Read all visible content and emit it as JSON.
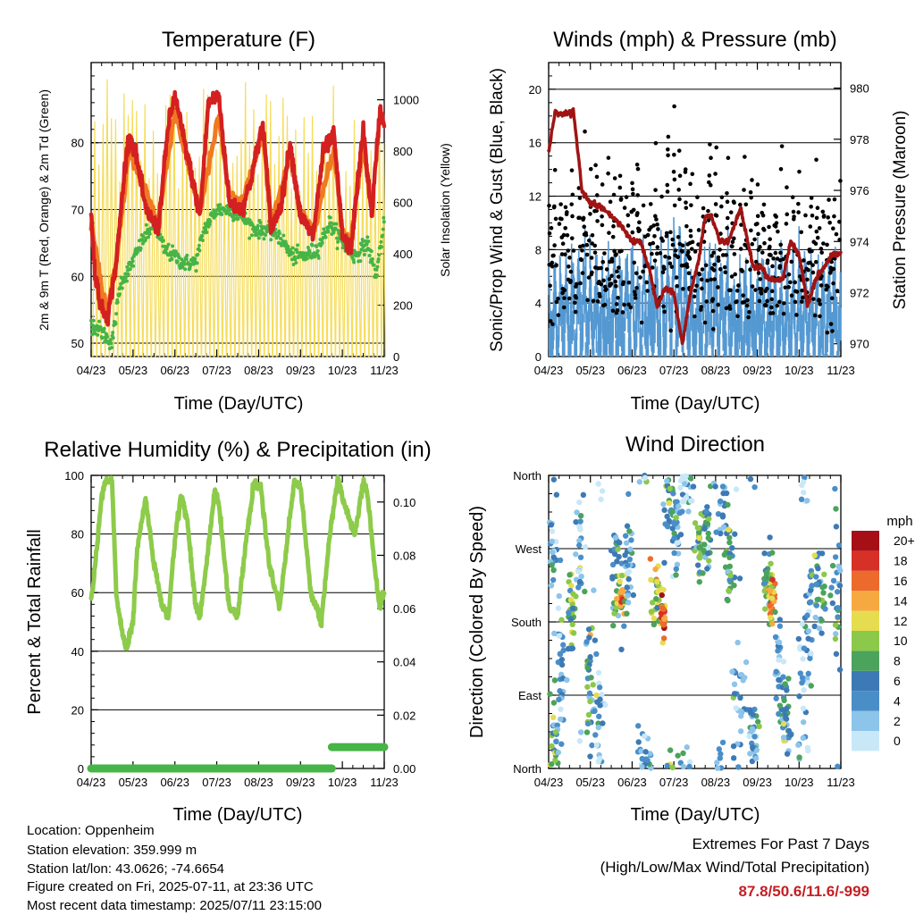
{
  "charts": {
    "temperature": {
      "title": "Temperature (F)",
      "xlabel": "Time (Day/UTC)",
      "ylabel_left": "2m & 9m T (Red, Orange) & 2m Td (Green)",
      "ylabel_right": "Solar Insolation (Yellow)"
    },
    "winds": {
      "title": "Winds (mph) & Pressure (mb)",
      "xlabel": "Time (Day/UTC)",
      "ylabel_left": "Sonic/Prop Wind & Gust (Blue, Black)",
      "ylabel_right": "Station Pressure (Maroon)"
    },
    "humidity": {
      "title": "Relative Humidity (%) & Precipitation (in)",
      "xlabel": "Time (Day/UTC)",
      "ylabel_left": "Percent & Total Rainfall"
    },
    "direction": {
      "title": "Wind Direction",
      "xlabel": "Time (Day/UTC)",
      "ylabel_left": "Direction (Colored By Speed)",
      "legend_title": "mph"
    }
  },
  "footer": {
    "location": "Location: Oppenheim",
    "elevation": "Station elevation: 359.999 m",
    "latlon": "Station lat/lon: 43.0626; -74.6654",
    "created": "Figure created on Fri, 2025-07-11, at 23:36 UTC",
    "recent": "Most recent data timestamp: 2025/07/11 23:15:00",
    "extremes_title": "Extremes For Past 7 Days",
    "extremes_sub": "(High/Low/Max Wind/Total Precipitation)",
    "extremes_values": "87.8/50.6/11.6/-999"
  },
  "colors": {
    "temp_2m": "#d42020",
    "temp_9m": "#f07a20",
    "dewpoint": "#46b446",
    "solar": "#f5dc5a",
    "wind": "#5599d2",
    "gust": "#000000",
    "pressure": "#a01414",
    "humidity": "#8dcb4a",
    "precip": "#46b446",
    "extremes": "#c41e24"
  },
  "chart_data": [
    {
      "id": "temperature",
      "type": "line",
      "title": "Temperature (F)",
      "xlabel": "Time (Day/UTC)",
      "ylabel": "2m & 9m T (Red, Orange) & 2m Td (Green)",
      "y2label": "Solar Insolation (Yellow)",
      "x_ticks": [
        "04/23",
        "05/23",
        "06/23",
        "07/23",
        "08/23",
        "09/23",
        "10/23",
        "11/23"
      ],
      "xlim": [
        0,
        7
      ],
      "ylim": [
        48,
        92
      ],
      "y_ticks": [
        50,
        60,
        70,
        80
      ],
      "y2lim": [
        0,
        1145
      ],
      "y2_ticks": [
        0,
        200,
        400,
        600,
        800,
        1000
      ],
      "grid_y": [
        50,
        60,
        70,
        80
      ],
      "series": [
        {
          "name": "2m T",
          "color": "#d42020",
          "x": [
            0,
            0.1,
            0.25,
            0.4,
            0.6,
            0.8,
            0.9,
            1.05,
            1.3,
            1.6,
            1.85,
            2.0,
            2.3,
            2.6,
            2.8,
            3.05,
            3.3,
            3.6,
            3.8,
            4.1,
            4.3,
            4.55,
            4.75,
            5.0,
            5.3,
            5.55,
            5.8,
            6.0,
            6.2,
            6.5,
            6.7,
            6.9,
            7.0
          ],
          "y": [
            69,
            60,
            55,
            54,
            62,
            76,
            81,
            79,
            70,
            67,
            83,
            87,
            78,
            69,
            86,
            87,
            71,
            70,
            74,
            83,
            67,
            71,
            80,
            69,
            66,
            79,
            81,
            66,
            64,
            82,
            69,
            85,
            83
          ]
        },
        {
          "name": "9m T",
          "color": "#f07a20",
          "x": [
            0,
            0.25,
            0.4,
            0.6,
            0.9,
            1.05,
            1.3,
            1.6,
            2.0,
            2.3,
            2.6,
            3.05,
            3.3,
            3.6,
            4.1,
            4.3,
            4.75,
            5.0,
            5.3,
            5.8,
            6.0,
            6.2,
            6.5,
            6.7
          ],
          "y": [
            68,
            58,
            55,
            62,
            79,
            76,
            73,
            68,
            85,
            77,
            70,
            84,
            72,
            71,
            81,
            68,
            78,
            69,
            67,
            79,
            67,
            65,
            80,
            70
          ]
        },
        {
          "name": "2m Td",
          "color": "#46b446",
          "x": [
            0,
            0.2,
            0.35,
            0.5,
            0.7,
            0.9,
            1.2,
            1.5,
            1.75,
            2.0,
            2.2,
            2.5,
            2.7,
            3.0,
            3.3,
            3.6,
            3.9,
            4.2,
            4.5,
            4.8,
            5.1,
            5.4,
            5.7,
            6.0,
            6.3,
            6.6,
            6.8,
            7.0
          ],
          "y": [
            53,
            52,
            51,
            50,
            59,
            61,
            65,
            68,
            64,
            63,
            62,
            62,
            67,
            70,
            70,
            69,
            67,
            67,
            66,
            63,
            63,
            64,
            68,
            65,
            63,
            65,
            60,
            68
          ]
        }
      ],
      "solar_days": 70,
      "solar_peak_range": [
        600,
        1080
      ]
    },
    {
      "id": "winds",
      "type": "line",
      "title": "Winds (mph) & Pressure (mb)",
      "xlabel": "Time (Day/UTC)",
      "ylabel": "Sonic/Prop Wind & Gust (Blue, Black)",
      "y2label": "Station Pressure (Maroon)",
      "x_ticks": [
        "04/23",
        "05/23",
        "06/23",
        "07/23",
        "08/23",
        "09/23",
        "10/23",
        "11/23"
      ],
      "xlim": [
        0,
        7
      ],
      "ylim": [
        0,
        22
      ],
      "y_ticks": [
        0,
        4,
        8,
        12,
        16,
        20
      ],
      "y2lim": [
        969.5,
        981.0
      ],
      "y2_ticks": [
        970,
        972,
        974,
        976,
        978,
        980
      ],
      "grid_y": [
        0,
        4,
        8,
        12,
        16,
        20
      ],
      "wind_peaks": [
        [
          0.05,
          8
        ],
        [
          0.55,
          11
        ],
        [
          1.3,
          9
        ],
        [
          1.9,
          12
        ],
        [
          2.6,
          10
        ],
        [
          3.05,
          15
        ],
        [
          3.5,
          9
        ],
        [
          3.9,
          10
        ],
        [
          4.6,
          8
        ],
        [
          5.2,
          9
        ],
        [
          5.9,
          11
        ],
        [
          6.6,
          9
        ]
      ],
      "pressure": {
        "name": "Station Pressure",
        "color": "#a01414",
        "x": [
          0,
          0.15,
          0.4,
          0.6,
          0.8,
          1.0,
          1.2,
          1.5,
          1.8,
          2.0,
          2.2,
          2.4,
          2.6,
          2.8,
          3.0,
          3.1,
          3.2,
          3.4,
          3.6,
          3.75,
          3.9,
          4.1,
          4.3,
          4.6,
          4.9,
          5.1,
          5.3,
          5.6,
          5.8,
          6.0,
          6.2,
          6.4,
          6.6,
          6.8,
          7.0
        ],
        "y": [
          977.5,
          979,
          979,
          979,
          976,
          975.5,
          975.4,
          975,
          974.5,
          974,
          974,
          973,
          971.5,
          972.2,
          972,
          971,
          970,
          972,
          973.3,
          975,
          975,
          974,
          974,
          975.3,
          973,
          973,
          972.5,
          972.5,
          974,
          973.5,
          971.5,
          972.5,
          973,
          973.5,
          973.5
        ]
      }
    },
    {
      "id": "humidity",
      "type": "line",
      "title": "Relative Humidity (%) & Precipitation (in)",
      "xlabel": "Time (Day/UTC)",
      "ylabel": "Percent & Total Rainfall",
      "x_ticks": [
        "04/23",
        "05/23",
        "06/23",
        "07/23",
        "08/23",
        "09/23",
        "10/23",
        "11/23"
      ],
      "xlim": [
        0,
        7
      ],
      "ylim": [
        0,
        100
      ],
      "y_ticks": [
        0,
        20,
        40,
        60,
        80,
        100
      ],
      "y2lim": [
        0,
        0.11
      ],
      "y2_ticks": [
        "0.00",
        "0.02",
        "0.04",
        "0.06",
        "0.08",
        "0.10"
      ],
      "grid_y": [
        20,
        40,
        60,
        80
      ],
      "series": [
        {
          "name": "RH",
          "color": "#8dcb4a",
          "x": [
            0,
            0.1,
            0.25,
            0.35,
            0.5,
            0.6,
            0.75,
            0.85,
            1.0,
            1.1,
            1.3,
            1.5,
            1.7,
            1.85,
            2.0,
            2.15,
            2.3,
            2.5,
            2.6,
            2.8,
            2.95,
            3.05,
            3.3,
            3.5,
            3.7,
            3.9,
            4.05,
            4.25,
            4.5,
            4.7,
            4.85,
            5.0,
            5.25,
            5.5,
            5.7,
            5.9,
            6.05,
            6.3,
            6.5,
            6.6,
            6.8,
            6.9,
            7.0
          ],
          "y": [
            57,
            70,
            92,
            98,
            98,
            60,
            45,
            41,
            50,
            75,
            92,
            70,
            55,
            52,
            78,
            94,
            84,
            55,
            52,
            75,
            95,
            90,
            55,
            52,
            78,
            98,
            96,
            70,
            55,
            80,
            98,
            96,
            60,
            50,
            80,
            99,
            90,
            80,
            98,
            94,
            65,
            55,
            60
          ]
        },
        {
          "name": "Precip",
          "color": "#46b446",
          "x": [
            0,
            5.75,
            5.75,
            7
          ],
          "y": [
            0,
            0,
            0.008,
            0.008
          ]
        }
      ]
    },
    {
      "id": "direction",
      "type": "scatter",
      "title": "Wind Direction",
      "xlabel": "Time (Day/UTC)",
      "ylabel": "Direction (Colored By Speed)",
      "x_ticks": [
        "04/23",
        "05/23",
        "06/23",
        "07/23",
        "08/23",
        "09/23",
        "10/23",
        "11/23"
      ],
      "xlim": [
        0,
        7
      ],
      "ylim": [
        0,
        360
      ],
      "y_ticks": [
        "North",
        "East",
        "South",
        "West",
        "North"
      ],
      "grid_y": [
        90,
        180,
        270
      ],
      "legend_title": "mph",
      "legend": [
        "0",
        "2",
        "4",
        "6",
        "8",
        "10",
        "12",
        "14",
        "16",
        "18",
        "20+"
      ],
      "legend_colors": [
        "#c8e8f8",
        "#8cc4ea",
        "#4a8ec8",
        "#3d7ab5",
        "#4ba35c",
        "#8cc84a",
        "#e6dc50",
        "#f7a941",
        "#ec6a2c",
        "#d73027",
        "#a50f15"
      ],
      "clusters": [
        [
          0.05,
          270,
          25,
          0.12,
          2
        ],
        [
          0.15,
          40,
          30,
          0.15,
          3
        ],
        [
          0.3,
          120,
          50,
          0.12,
          2
        ],
        [
          0.55,
          210,
          30,
          0.1,
          4
        ],
        [
          0.75,
          290,
          60,
          0.15,
          2
        ],
        [
          1.0,
          110,
          40,
          0.12,
          4
        ],
        [
          1.2,
          50,
          30,
          0.15,
          1
        ],
        [
          1.6,
          230,
          40,
          0.15,
          3
        ],
        [
          1.75,
          210,
          12,
          0.12,
          6
        ],
        [
          1.9,
          260,
          30,
          0.1,
          2
        ],
        [
          2.3,
          10,
          15,
          0.15,
          2
        ],
        [
          2.6,
          195,
          25,
          0.12,
          5
        ],
        [
          2.75,
          185,
          10,
          0.06,
          8
        ],
        [
          2.9,
          330,
          30,
          0.15,
          3
        ],
        [
          3.05,
          300,
          30,
          0.12,
          2
        ],
        [
          3.3,
          340,
          20,
          0.15,
          1
        ],
        [
          3.6,
          270,
          20,
          0.12,
          4
        ],
        [
          3.8,
          290,
          30,
          0.12,
          3
        ],
        [
          4.15,
          330,
          25,
          0.15,
          2
        ],
        [
          4.35,
          250,
          25,
          0.12,
          4
        ],
        [
          4.55,
          100,
          50,
          0.15,
          2
        ],
        [
          4.9,
          40,
          25,
          0.15,
          2
        ],
        [
          5.25,
          230,
          25,
          0.12,
          4
        ],
        [
          5.35,
          210,
          15,
          0.08,
          7
        ],
        [
          5.55,
          110,
          40,
          0.12,
          2
        ],
        [
          5.7,
          50,
          25,
          0.12,
          3
        ],
        [
          6.1,
          60,
          60,
          0.12,
          1
        ],
        [
          6.25,
          180,
          40,
          0.12,
          2
        ],
        [
          6.5,
          220,
          30,
          0.12,
          3
        ],
        [
          6.9,
          240,
          60,
          0.12,
          3
        ]
      ]
    }
  ]
}
